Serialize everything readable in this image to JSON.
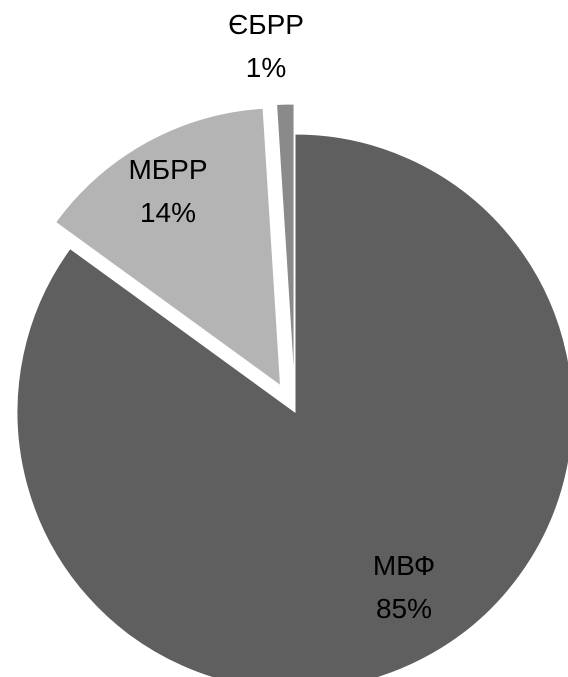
{
  "chart_data": {
    "type": "pie",
    "title": "",
    "legend": "none",
    "slices": [
      {
        "name": "МВФ",
        "value": 85,
        "label": "85%",
        "color": "#5f5f5f",
        "exploded": false
      },
      {
        "name": "МБРР",
        "value": 14,
        "label": "14%",
        "color": "#b4b4b4",
        "exploded": true
      },
      {
        "name": "ЄБРР",
        "value": 1,
        "label": "1%",
        "color": "#8a8a8a",
        "exploded": true
      }
    ]
  }
}
